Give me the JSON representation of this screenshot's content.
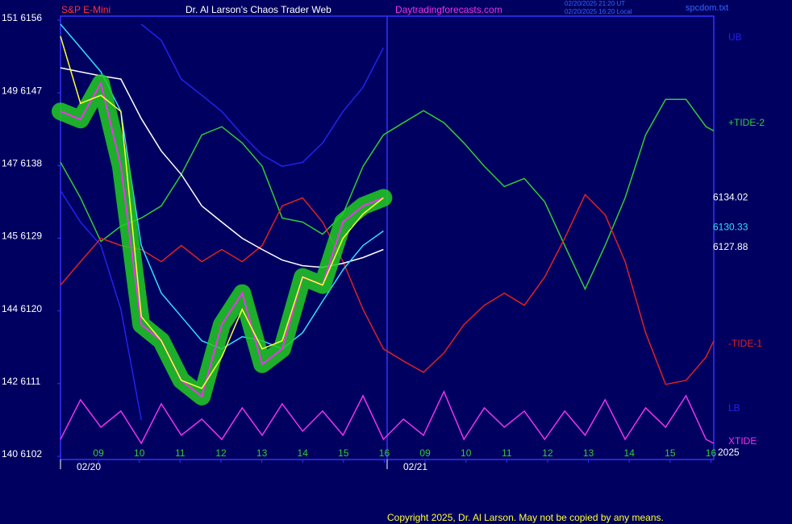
{
  "chart_data": {
    "type": "line",
    "symbol": "S&P E-Mini",
    "title": "Dr. Al Larson's Chaos Trader Web",
    "site": "Daytradingforecasts.com",
    "timestamps": [
      "02/20/2025 21:20 UT",
      "02/20/2025 16:20 Local"
    ],
    "file": "spcdom.txt",
    "copyright": "Copyright 2025, Dr. Al Larson. May not be copied by any means.",
    "year": "2025",
    "xlim": [
      8.07,
      24.07
    ],
    "ylim": [
      6101.6,
      6156.5
    ],
    "xticks": [
      {
        "value": 9,
        "label": "09"
      },
      10,
      11,
      12,
      13,
      14,
      15,
      16,
      {
        "value": 17,
        "label": "09"
      },
      {
        "value": 18,
        "label": "10"
      },
      {
        "value": 19,
        "label": "11"
      },
      {
        "value": 20,
        "label": "12"
      },
      {
        "value": 21,
        "label": "13"
      },
      {
        "value": 22,
        "label": "14"
      },
      {
        "value": 23,
        "label": "15"
      },
      {
        "value": 24,
        "label": "16"
      }
    ],
    "date_labels": [
      {
        "value": 8.07,
        "label": "02/20"
      },
      {
        "value": 16.07,
        "label": "02/21"
      }
    ],
    "yticks": [
      {
        "value": 6156,
        "label": "151 6156"
      },
      {
        "value": 6147,
        "label": "149 6147"
      },
      {
        "value": 6138,
        "label": "147 6138"
      },
      {
        "value": 6129,
        "label": "145 6129"
      },
      {
        "value": 6120,
        "label": "144 6120"
      },
      {
        "value": 6111,
        "label": "142 6111"
      },
      {
        "value": 6102,
        "label": "140 6102"
      }
    ],
    "last_values": [
      {
        "value": 6134.02,
        "color": "#ffffff"
      },
      {
        "value": 6130.33,
        "color": "#33ddff"
      },
      {
        "value": 6127.88,
        "color": "#ffffff"
      }
    ],
    "x": [
      8.07,
      8.56,
      9.06,
      9.55,
      10.05,
      10.54,
      11.03,
      11.53,
      12.02,
      12.52,
      13.01,
      13.5,
      14.0,
      14.49,
      14.99,
      15.48,
      15.98,
      16.47,
      16.96,
      17.46,
      17.95,
      18.45,
      18.94,
      19.43,
      19.93,
      20.42,
      20.92,
      21.41,
      21.9,
      22.4,
      22.89,
      23.39,
      23.88,
      24.07
    ],
    "series": [
      {
        "name": "UB",
        "color": "#2222ee",
        "values": [
          null,
          null,
          null,
          null,
          6155.5,
          6153.5,
          6148.7,
          6146.7,
          6144.7,
          6141.8,
          6139.3,
          6137.9,
          6138.4,
          6140.8,
          6144.7,
          6147.7,
          6152.6,
          null,
          null,
          null,
          null,
          null,
          null,
          null,
          null,
          null,
          null,
          null,
          null,
          null,
          null,
          null,
          null,
          null
        ]
      },
      {
        "name": "LB",
        "color": "#2222ee",
        "values": [
          6134.9,
          6131,
          6128.1,
          6120.2,
          6106.5,
          null,
          null,
          null,
          null,
          null,
          null,
          null,
          null,
          null,
          null,
          null,
          null,
          null,
          null,
          null,
          null,
          null,
          null,
          null,
          null,
          null,
          null,
          null,
          null,
          null,
          null,
          null,
          null,
          null
        ]
      },
      {
        "name": "+TIDE-2",
        "color": "#33cc33",
        "values": [
          6138.4,
          6134,
          6128.6,
          6130.5,
          6131.5,
          6133,
          6136.9,
          6141.8,
          6142.8,
          6140.8,
          6137.9,
          6131.5,
          6131,
          6129.5,
          6132,
          6137.9,
          6141.8,
          6143.3,
          6144.8,
          6143.3,
          6140.8,
          6137.9,
          6135.4,
          6136.4,
          6133.5,
          6128.1,
          6122.7,
          6128.1,
          6134,
          6141.8,
          6146.2,
          6146.2,
          6142.8,
          6142.3
        ]
      },
      {
        "name": "-TIDE-1",
        "color": "#dd2222",
        "values": [
          6123.2,
          6126.1,
          6129,
          6128.1,
          6127.6,
          6126.1,
          6128.1,
          6126.1,
          6127.6,
          6126.1,
          6128.1,
          6133,
          6134,
          6131,
          6126.1,
          6120.2,
          6115.3,
          6113.8,
          6112.4,
          6114.8,
          6118.3,
          6120.7,
          6122.2,
          6120.7,
          6124.2,
          6129,
          6134.4,
          6131.9,
          6126.1,
          6117.3,
          6110.9,
          6111.4,
          6114.3,
          6116.3
        ]
      },
      {
        "name": "XTIDE",
        "color": "#ee33ee",
        "values": [
          6104.1,
          6109,
          6105.6,
          6107.6,
          6103.6,
          6108.5,
          6104.6,
          6106.6,
          6104.1,
          6108,
          6104.6,
          6108.5,
          6105.1,
          6107.6,
          6104.6,
          6109.5,
          6104.1,
          6106.6,
          6104.6,
          6110,
          6104.1,
          6108,
          6105.6,
          6107.6,
          6104.1,
          6107.6,
          6104.6,
          6109,
          6104.1,
          6108,
          6105.6,
          6109.5,
          6104.1,
          6103.6
        ]
      },
      {
        "color": "#ffffff",
        "values": [
          6150.1,
          6149.6,
          6149.1,
          6148.7,
          6143.8,
          6139.8,
          6136.9,
          6133,
          6131,
          6129,
          6127.6,
          6126.3,
          6125.6,
          6125.4,
          6125.9,
          6126.6,
          6127.6,
          null,
          null,
          null,
          null,
          null,
          null,
          null,
          null,
          null,
          null,
          null,
          null,
          null,
          null,
          null,
          null,
          null
        ]
      },
      {
        "color": "#33ddff",
        "values": [
          6155.5,
          6152.6,
          6149.6,
          6144.7,
          6128.1,
          6122.2,
          6119.3,
          6116.3,
          6115.3,
          6116.8,
          6116.3,
          6115.3,
          6117.3,
          6121.2,
          6125.1,
          6128.1,
          6129.9,
          null,
          null,
          null,
          null,
          null,
          null,
          null,
          null,
          null,
          null,
          null,
          null,
          null,
          null,
          null,
          null,
          null
        ]
      },
      {
        "color": "#ee33ee",
        "band": "#22cc22",
        "values": [
          6144.7,
          6143.7,
          6148.2,
          6137.9,
          6118.3,
          6116.3,
          6111.4,
          6109.4,
          6118.3,
          6122.2,
          6113.4,
          6115.3,
          6124.2,
          6123.2,
          6131,
          6133,
          6134,
          null,
          null,
          null,
          null,
          null,
          null,
          null,
          null,
          null,
          null,
          null,
          null,
          null,
          null,
          null,
          null,
          null
        ]
      },
      {
        "color": "#ffff33",
        "values": [
          6154,
          6145.7,
          6146.7,
          6144.7,
          6119.3,
          6116.3,
          6111.4,
          6110.4,
          6114.3,
          6120.2,
          6115.3,
          6116.3,
          6124.2,
          6123.2,
          6129,
          6132,
          6134,
          null,
          null,
          null,
          null,
          null,
          null,
          null,
          null,
          null,
          null,
          null,
          null,
          null,
          null,
          null,
          null,
          null
        ]
      }
    ]
  }
}
